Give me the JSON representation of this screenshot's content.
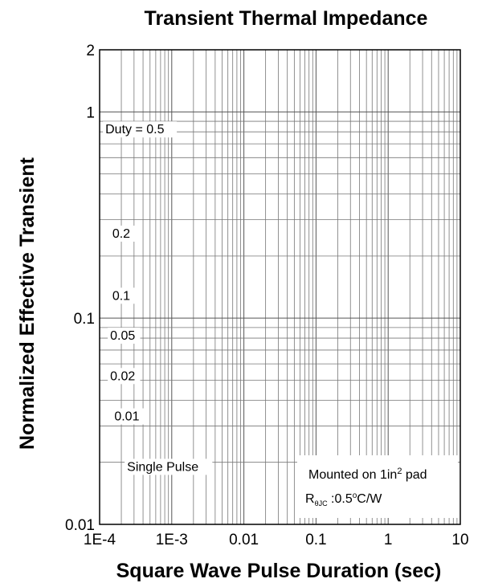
{
  "chart_data": {
    "type": "line",
    "title": "Transient Thermal Impedance",
    "xlabel": "Square Wave Pulse Duration (sec)",
    "ylabel": "Normalized Effective Transient",
    "x_scale": "log",
    "y_scale": "log",
    "xlim": [
      0.0001,
      10
    ],
    "ylim": [
      0.01,
      2
    ],
    "grid": true,
    "x_ticks": [
      {
        "value": 0.0001,
        "label": "1E-4"
      },
      {
        "value": 0.001,
        "label": "1E-3"
      },
      {
        "value": 0.01,
        "label": "0.01"
      },
      {
        "value": 0.1,
        "label": "0.1"
      },
      {
        "value": 1,
        "label": "1"
      },
      {
        "value": 10,
        "label": "10"
      }
    ],
    "y_ticks": [
      {
        "value": 0.01,
        "label": "0.01"
      },
      {
        "value": 0.1,
        "label": "0.1"
      },
      {
        "value": 1,
        "label": "1"
      },
      {
        "value": 2,
        "label": "2"
      }
    ],
    "series_labels": [
      {
        "text": "Duty = 0.5",
        "x": 0.00012,
        "y": 0.8
      },
      {
        "text": "0.2",
        "x": 0.00015,
        "y": 0.25
      },
      {
        "text": "0.1",
        "x": 0.00015,
        "y": 0.125
      },
      {
        "text": "0.05",
        "x": 0.00014,
        "y": 0.08
      },
      {
        "text": "0.02",
        "x": 0.00014,
        "y": 0.051
      },
      {
        "text": "0.01",
        "x": 0.00016,
        "y": 0.0325
      },
      {
        "text": "Single Pulse",
        "x": 0.00024,
        "y": 0.0185
      }
    ],
    "annotation": {
      "line1_prefix": "Mounted on 1in",
      "line1_sup": "2",
      "line1_suffix": " pad",
      "line2_r": "R",
      "line2_sub": "θJC",
      "line2_value": " :0.5",
      "line2_deg": "o",
      "line2_unit": "C/W"
    }
  }
}
